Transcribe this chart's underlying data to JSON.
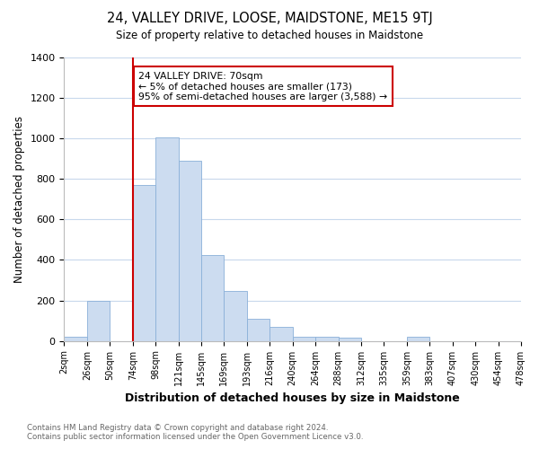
{
  "title": "24, VALLEY DRIVE, LOOSE, MAIDSTONE, ME15 9TJ",
  "subtitle": "Size of property relative to detached houses in Maidstone",
  "xlabel": "Distribution of detached houses by size in Maidstone",
  "ylabel": "Number of detached properties",
  "bin_labels": [
    "2sqm",
    "26sqm",
    "50sqm",
    "74sqm",
    "98sqm",
    "121sqm",
    "145sqm",
    "169sqm",
    "193sqm",
    "216sqm",
    "240sqm",
    "264sqm",
    "288sqm",
    "312sqm",
    "335sqm",
    "359sqm",
    "383sqm",
    "407sqm",
    "430sqm",
    "454sqm",
    "478sqm"
  ],
  "bar_heights": [
    20,
    200,
    0,
    770,
    1005,
    890,
    425,
    245,
    110,
    70,
    20,
    20,
    15,
    0,
    0,
    20,
    0,
    0,
    0,
    0
  ],
  "bar_color": "#ccdcf0",
  "bar_edge_color": "#8ab0d8",
  "vline_x_index": 3,
  "vline_color": "#cc0000",
  "annotation_title": "24 VALLEY DRIVE: 70sqm",
  "annotation_line1": "← 5% of detached houses are smaller (173)",
  "annotation_line2": "95% of semi-detached houses are larger (3,588) →",
  "annotation_box_color": "#ffffff",
  "annotation_box_edge": "#cc0000",
  "ylim": [
    0,
    1400
  ],
  "yticks": [
    0,
    200,
    400,
    600,
    800,
    1000,
    1200,
    1400
  ],
  "footer_line1": "Contains HM Land Registry data © Crown copyright and database right 2024.",
  "footer_line2": "Contains public sector information licensed under the Open Government Licence v3.0.",
  "bg_color": "#ffffff",
  "grid_color": "#c8d8ec"
}
